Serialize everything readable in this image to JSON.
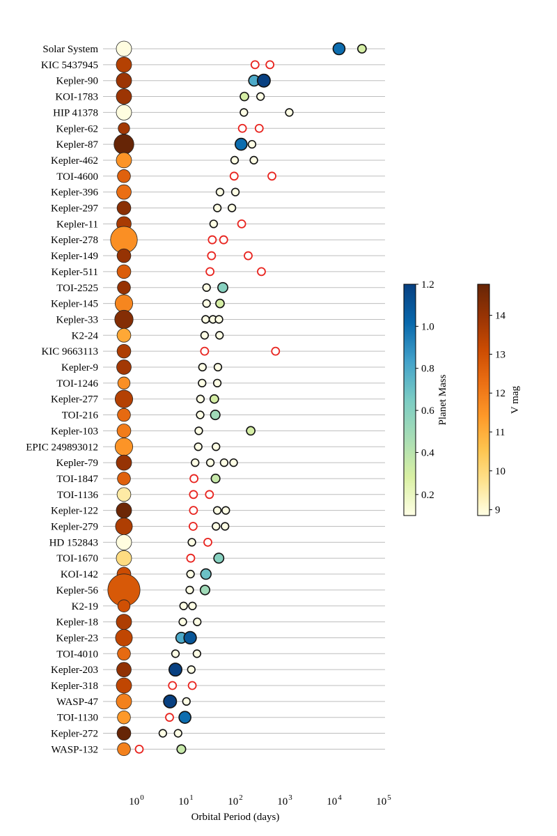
{
  "chart_data": {
    "type": "scatter",
    "title": "",
    "xlabel": "Orbital Period (days)",
    "xscale": "log",
    "xlim": [
      0.2,
      100000
    ],
    "x_tick_labels": [
      {
        "value": 1,
        "base": "10",
        "exp": "0"
      },
      {
        "value": 10,
        "base": "10",
        "exp": "1"
      },
      {
        "value": 100,
        "base": "10",
        "exp": "2"
      },
      {
        "value": 1000,
        "base": "10",
        "exp": "3"
      },
      {
        "value": 10000,
        "base": "10",
        "exp": "4"
      },
      {
        "value": 100000,
        "base": "10",
        "exp": "5"
      }
    ],
    "marker_legend": "filled circle = planet with mass measurement (colored by Planet Mass); red open circle = planet without mass measurement; large circle at left = host star (colored by V mag)",
    "colorbars": [
      {
        "label": "Planet Mass",
        "range": [
          0.1,
          1.2
        ],
        "ticks": [
          "0.2",
          "0.4",
          "0.6",
          "0.8",
          "1.0",
          "1.2"
        ],
        "tick_values": [
          0.2,
          0.4,
          0.6,
          0.8,
          1.0,
          1.2
        ],
        "colormap": [
          "#ffffe5",
          "#d9f0a3",
          "#a8ddb5",
          "#7bccc4",
          "#43a2ca",
          "#0868ac",
          "#084081"
        ]
      },
      {
        "label": "V mag",
        "range": [
          8.85,
          14.8
        ],
        "ticks": [
          "9",
          "10",
          "11",
          "12",
          "13",
          "14"
        ],
        "tick_values": [
          9,
          10,
          11,
          12,
          13,
          14
        ],
        "colormap": [
          "#ffffe5",
          "#fee391",
          "#fec44f",
          "#fe9929",
          "#ec7014",
          "#cc4c02",
          "#993404",
          "#662506"
        ]
      }
    ],
    "systems": [
      {
        "name": "Solar System",
        "vmag": 8.9,
        "star_size": 1.0,
        "planets": [
          {
            "period": 11000,
            "mass": 1.0
          },
          {
            "period": 32000,
            "mass": 0.3
          }
        ]
      },
      {
        "name": "KIC 5437945",
        "vmag": 13.5,
        "star_size": 1.0,
        "planets": [
          {
            "period": 220,
            "mass": null
          },
          {
            "period": 440,
            "mass": null
          }
        ]
      },
      {
        "name": "Kepler-90",
        "vmag": 13.9,
        "star_size": 1.0,
        "planets": [
          {
            "period": 211,
            "mass": 0.8
          },
          {
            "period": 331,
            "mass": 1.2
          }
        ]
      },
      {
        "name": "KOI-1783",
        "vmag": 13.9,
        "star_size": 1.0,
        "planets": [
          {
            "period": 134,
            "mass": 0.3
          },
          {
            "period": 284,
            "mass": 0.1
          }
        ]
      },
      {
        "name": "HIP 41378",
        "vmag": 8.9,
        "star_size": 1.0,
        "planets": [
          {
            "period": 131,
            "mass": 0.1
          },
          {
            "period": 1084,
            "mass": 0.1
          }
        ]
      },
      {
        "name": "Kepler-62",
        "vmag": 13.8,
        "star_size": 0.75,
        "planets": [
          {
            "period": 122,
            "mass": null
          },
          {
            "period": 267,
            "mass": null
          }
        ]
      },
      {
        "name": "Kepler-87",
        "vmag": 14.8,
        "star_size": 1.3,
        "planets": [
          {
            "period": 115,
            "mass": 1.0
          },
          {
            "period": 191,
            "mass": 0.1
          }
        ]
      },
      {
        "name": "Kepler-462",
        "vmag": 11.5,
        "star_size": 1.0,
        "planets": [
          {
            "period": 85,
            "mass": 0.1
          },
          {
            "period": 208,
            "mass": 0.1
          }
        ]
      },
      {
        "name": "TOI-4600",
        "vmag": 12.6,
        "star_size": 0.85,
        "planets": [
          {
            "period": 83,
            "mass": null
          },
          {
            "period": 483,
            "mass": null
          }
        ]
      },
      {
        "name": "Kepler-396",
        "vmag": 12.3,
        "star_size": 0.95,
        "planets": [
          {
            "period": 43,
            "mass": 0.1
          },
          {
            "period": 88,
            "mass": 0.1
          }
        ]
      },
      {
        "name": "Kepler-297",
        "vmag": 14.2,
        "star_size": 0.9,
        "planets": [
          {
            "period": 38,
            "mass": 0.1
          },
          {
            "period": 75,
            "mass": 0.1
          }
        ]
      },
      {
        "name": "Kepler-11",
        "vmag": 13.7,
        "star_size": 0.95,
        "planets": [
          {
            "period": 32,
            "mass": 0.1
          },
          {
            "period": 118,
            "mass": null
          }
        ]
      },
      {
        "name": "Kepler-278",
        "vmag": 11.6,
        "star_size": 1.75,
        "planets": [
          {
            "period": 30,
            "mass": null
          },
          {
            "period": 51,
            "mass": null
          }
        ]
      },
      {
        "name": "Kepler-149",
        "vmag": 14.0,
        "star_size": 0.9,
        "planets": [
          {
            "period": 29,
            "mass": null
          },
          {
            "period": 160,
            "mass": null
          }
        ]
      },
      {
        "name": "Kepler-511",
        "vmag": 12.7,
        "star_size": 0.9,
        "planets": [
          {
            "period": 27,
            "mass": null
          },
          {
            "period": 296,
            "mass": null
          }
        ]
      },
      {
        "name": "TOI-2525",
        "vmag": 14.0,
        "star_size": 0.85,
        "planets": [
          {
            "period": 23,
            "mass": 0.1
          },
          {
            "period": 49,
            "mass": 0.6
          }
        ]
      },
      {
        "name": "Kepler-145",
        "vmag": 11.8,
        "star_size": 1.15,
        "planets": [
          {
            "period": 23,
            "mass": 0.1
          },
          {
            "period": 43,
            "mass": 0.3
          }
        ]
      },
      {
        "name": "Kepler-33",
        "vmag": 14.3,
        "star_size": 1.2,
        "planets": [
          {
            "period": 22,
            "mass": 0.1
          },
          {
            "period": 31,
            "mass": 0.1
          },
          {
            "period": 41,
            "mass": 0.1
          }
        ]
      },
      {
        "name": "K2-24",
        "vmag": 11.1,
        "star_size": 0.9,
        "planets": [
          {
            "period": 21,
            "mass": 0.1
          },
          {
            "period": 42,
            "mass": 0.1
          }
        ]
      },
      {
        "name": "KIC 9663113",
        "vmag": 13.6,
        "star_size": 0.9,
        "planets": [
          {
            "period": 21,
            "mass": null
          },
          {
            "period": 572,
            "mass": null
          }
        ]
      },
      {
        "name": "Kepler-9",
        "vmag": 13.8,
        "star_size": 0.95,
        "planets": [
          {
            "period": 19,
            "mass": 0.1
          },
          {
            "period": 39,
            "mass": 0.1
          }
        ]
      },
      {
        "name": "TOI-1246",
        "vmag": 11.6,
        "star_size": 0.8,
        "planets": [
          {
            "period": 18.7,
            "mass": 0.1
          },
          {
            "period": 37.9,
            "mass": 0.1
          }
        ]
      },
      {
        "name": "Kepler-277",
        "vmag": 13.5,
        "star_size": 1.15,
        "planets": [
          {
            "period": 17.3,
            "mass": 0.1
          },
          {
            "period": 33.0,
            "mass": 0.3
          }
        ]
      },
      {
        "name": "TOI-216",
        "vmag": 12.4,
        "star_size": 0.85,
        "planets": [
          {
            "period": 17.1,
            "mass": 0.1
          },
          {
            "period": 34.5,
            "mass": 0.5
          }
        ]
      },
      {
        "name": "Kepler-103",
        "vmag": 12.0,
        "star_size": 0.9,
        "planets": [
          {
            "period": 16.0,
            "mass": 0.1
          },
          {
            "period": 180,
            "mass": 0.3
          }
        ]
      },
      {
        "name": "EPIC 249893012",
        "vmag": 11.5,
        "star_size": 1.15,
        "planets": [
          {
            "period": 15.6,
            "mass": 0.1
          },
          {
            "period": 35.7,
            "mass": 0.1
          }
        ]
      },
      {
        "name": "Kepler-79",
        "vmag": 14.0,
        "star_size": 1.0,
        "planets": [
          {
            "period": 13.5,
            "mass": 0.1
          },
          {
            "period": 27.4,
            "mass": 0.1
          },
          {
            "period": 52.1,
            "mass": 0.1
          },
          {
            "period": 81.1,
            "mass": 0.1
          }
        ]
      },
      {
        "name": "TOI-1847",
        "vmag": 12.6,
        "star_size": 0.85,
        "planets": [
          {
            "period": 12.8,
            "mass": null
          },
          {
            "period": 35,
            "mass": 0.35
          }
        ]
      },
      {
        "name": "TOI-1136",
        "vmag": 9.5,
        "star_size": 0.9,
        "planets": [
          {
            "period": 12.5,
            "mass": null
          },
          {
            "period": 26.3,
            "mass": null
          }
        ]
      },
      {
        "name": "Kepler-122",
        "vmag": 14.7,
        "star_size": 1.0,
        "planets": [
          {
            "period": 12.5,
            "mass": null
          },
          {
            "period": 37.9,
            "mass": 0.1
          },
          {
            "period": 56.3,
            "mass": 0.1
          }
        ]
      },
      {
        "name": "Kepler-279",
        "vmag": 13.6,
        "star_size": 1.1,
        "planets": [
          {
            "period": 12.3,
            "mass": null
          },
          {
            "period": 35.7,
            "mass": 0.1
          },
          {
            "period": 54.4,
            "mass": 0.1
          }
        ]
      },
      {
        "name": "HD 152843",
        "vmag": 8.9,
        "star_size": 1.0,
        "planets": [
          {
            "period": 11.6,
            "mass": 0.1
          },
          {
            "period": 24.4,
            "mass": null
          }
        ]
      },
      {
        "name": "TOI-1670",
        "vmag": 9.9,
        "star_size": 1.0,
        "planets": [
          {
            "period": 11.0,
            "mass": null
          },
          {
            "period": 40.7,
            "mass": 0.6
          }
        ]
      },
      {
        "name": "KOI-142",
        "vmag": 13.1,
        "star_size": 0.9,
        "planets": [
          {
            "period": 10.9,
            "mass": 0.1
          },
          {
            "period": 22.3,
            "mass": 0.7
          }
        ]
      },
      {
        "name": "Kepler-56",
        "vmag": 12.8,
        "star_size": 2.1,
        "planets": [
          {
            "period": 10.5,
            "mass": 0.1
          },
          {
            "period": 21.4,
            "mass": 0.5
          }
        ]
      },
      {
        "name": "K2-19",
        "vmag": 13.0,
        "star_size": 0.8,
        "planets": [
          {
            "period": 7.9,
            "mass": 0.1
          },
          {
            "period": 11.9,
            "mass": 0.1
          }
        ]
      },
      {
        "name": "Kepler-18",
        "vmag": 13.6,
        "star_size": 1.0,
        "planets": [
          {
            "period": 7.6,
            "mass": 0.1
          },
          {
            "period": 14.9,
            "mass": 0.1
          }
        ]
      },
      {
        "name": "Kepler-23",
        "vmag": 13.3,
        "star_size": 1.1,
        "planets": [
          {
            "period": 7.1,
            "mass": 0.8
          },
          {
            "period": 10.7,
            "mass": 1.1
          }
        ]
      },
      {
        "name": "TOI-4010",
        "vmag": 12.4,
        "star_size": 0.85,
        "planets": [
          {
            "period": 5.4,
            "mass": 0.1
          },
          {
            "period": 14.7,
            "mass": 0.1
          }
        ]
      },
      {
        "name": "Kepler-203",
        "vmag": 14.1,
        "star_size": 0.95,
        "planets": [
          {
            "period": 5.4,
            "mass": 1.2
          },
          {
            "period": 11.3,
            "mass": 0.1
          }
        ]
      },
      {
        "name": "Kepler-318",
        "vmag": 13.3,
        "star_size": 1.0,
        "planets": [
          {
            "period": 4.7,
            "mass": null
          },
          {
            "period": 11.8,
            "mass": null
          }
        ]
      },
      {
        "name": "WASP-47",
        "vmag": 11.9,
        "star_size": 1.0,
        "planets": [
          {
            "period": 4.2,
            "mass": 1.2
          },
          {
            "period": 9.0,
            "mass": 0.1
          }
        ]
      },
      {
        "name": "TOI-1130",
        "vmag": 11.4,
        "star_size": 0.85,
        "planets": [
          {
            "period": 4.1,
            "mass": null
          },
          {
            "period": 8.4,
            "mass": 1.0
          }
        ]
      },
      {
        "name": "Kepler-272",
        "vmag": 14.8,
        "star_size": 0.9,
        "planets": [
          {
            "period": 3.0,
            "mass": 0.1
          },
          {
            "period": 6.1,
            "mass": 0.1
          }
        ]
      },
      {
        "name": "WASP-132",
        "vmag": 11.9,
        "star_size": 0.85,
        "planets": [
          {
            "period": 1.0,
            "mass": null
          },
          {
            "period": 7.1,
            "mass": 0.35
          }
        ]
      }
    ],
    "grid": false,
    "row_lines": true
  }
}
